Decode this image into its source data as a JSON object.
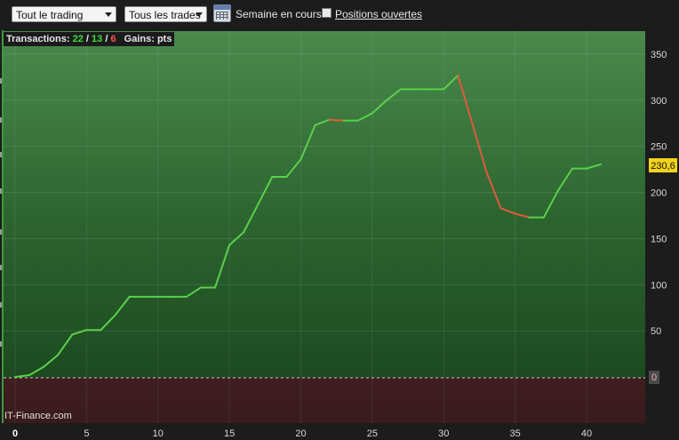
{
  "toolbar": {
    "period_select": "Tout le trading",
    "trades_select": "Tous les trades",
    "week_label": "Semaine en cours",
    "open_positions_label": "Positions ouvertes"
  },
  "info": {
    "transactions_label": "Transactions:",
    "total": "22",
    "sep": "/",
    "wins": "13",
    "losses": "6",
    "gains_label": "Gains: pts"
  },
  "watermark": "IT-Finance.com",
  "chart_data": {
    "type": "line",
    "x": [
      0,
      1,
      2,
      3,
      4,
      5,
      6,
      7,
      8,
      9,
      10,
      11,
      12,
      13,
      14,
      15,
      16,
      17,
      18,
      19,
      20,
      21,
      22,
      23,
      24,
      25,
      26,
      27,
      28,
      29,
      30,
      31,
      32,
      33,
      34,
      35,
      36,
      37,
      38,
      39,
      40,
      41
    ],
    "y": [
      0,
      2,
      11,
      24,
      46,
      51,
      51,
      67,
      87,
      87,
      87,
      87,
      87,
      97,
      97,
      143,
      157,
      187,
      217,
      217,
      236,
      273,
      279,
      278,
      278,
      286,
      300,
      312,
      312,
      312,
      312,
      327,
      275,
      222,
      183,
      177,
      173,
      173,
      202,
      226,
      226,
      230.6
    ],
    "ylim": [
      -50,
      375
    ],
    "xlim": [
      0,
      44
    ],
    "yticks": [
      0,
      50,
      100,
      150,
      200,
      250,
      300,
      350
    ],
    "xticks": [
      0,
      5,
      10,
      15,
      20,
      25,
      30,
      35,
      40
    ],
    "last_value_label": "230,6",
    "zero_label": "0",
    "rising_color": "#5ad04a",
    "falling_color": "#e05a3a",
    "grid": true
  }
}
